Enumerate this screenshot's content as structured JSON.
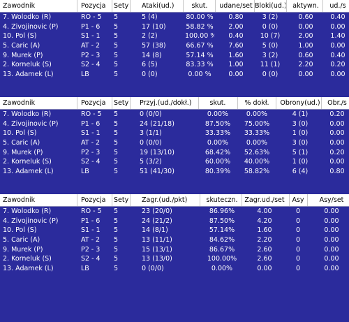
{
  "tables": [
    {
      "headers": [
        "Zawodnik",
        "Pozycja",
        "Sety",
        "Ataki(ud.)",
        "skut.",
        "udane/set",
        "Bloki(ud.)",
        "aktywn.",
        "ud./s"
      ],
      "rows": [
        [
          "7. Wolodko (R)",
          "RO - 5",
          "5",
          "5 (4)",
          "80.00 %",
          "0.80",
          "3 (2)",
          "0.60",
          "0.40"
        ],
        [
          "4. Zivojinovic (P)",
          "P1 - 6",
          "5",
          "17 (10)",
          "58.82 %",
          "2.00",
          "0 (0)",
          "0.00",
          "0.00"
        ],
        [
          "10. Pol (S)",
          "S1 - 1",
          "5",
          "2 (2)",
          "100.00 %",
          "0.40",
          "10 (7)",
          "2.00",
          "1.40"
        ],
        [
          "5. Caric (A)",
          "AT - 2",
          "5",
          "57 (38)",
          "66.67 %",
          "7.60",
          "5 (0)",
          "1.00",
          "0.00"
        ],
        [
          "9. Murek (P)",
          "P2 - 3",
          "5",
          "14 (8)",
          "57.14 %",
          "1.60",
          "3 (2)",
          "0.60",
          "0.40"
        ],
        [
          "2. Korneluk (S)",
          "S2 - 4",
          "5",
          "6 (5)",
          "83.33 %",
          "1.00",
          "11 (1)",
          "2.20",
          "0.20"
        ],
        [
          "13. Adamek (L)",
          "LB",
          "5",
          "0 (0)",
          "0.00 %",
          "0.00",
          "0 (0)",
          "0.00",
          "0.00"
        ]
      ]
    },
    {
      "headers": [
        "Zawodnik",
        "Pozycja",
        "Sety",
        "Przyj.(ud./dokł.)",
        "skut.",
        "% dokł.",
        "Obrony(ud.)",
        "Obr./s"
      ],
      "rows": [
        [
          "7. Wolodko (R)",
          "RO - 5",
          "5",
          "0 (0/0)",
          "0.00%",
          "0.00%",
          "4 (1)",
          "0.20"
        ],
        [
          "4. Zivojinovic (P)",
          "P1 - 6",
          "5",
          "24 (21/18)",
          "87.50%",
          "75.00%",
          "3 (0)",
          "0.00"
        ],
        [
          "10. Pol (S)",
          "S1 - 1",
          "5",
          "3 (1/1)",
          "33.33%",
          "33.33%",
          "1 (0)",
          "0.00"
        ],
        [
          "5. Caric (A)",
          "AT - 2",
          "5",
          "0 (0/0)",
          "0.00%",
          "0.00%",
          "3 (0)",
          "0.00"
        ],
        [
          "9. Murek (P)",
          "P2 - 3",
          "5",
          "19 (13/10)",
          "68.42%",
          "52.63%",
          "5 (1)",
          "0.20"
        ],
        [
          "2. Korneluk (S)",
          "S2 - 4",
          "5",
          "5 (3/2)",
          "60.00%",
          "40.00%",
          "1 (0)",
          "0.00"
        ],
        [
          "13. Adamek (L)",
          "LB",
          "5",
          "51 (41/30)",
          "80.39%",
          "58.82%",
          "6 (4)",
          "0.80"
        ]
      ]
    },
    {
      "headers": [
        "Zawodnik",
        "Pozycja",
        "Sety",
        "Zagr.(ud./pkt)",
        "skuteczn.",
        "Zagr.ud./set",
        "Asy",
        "Asy/set"
      ],
      "rows": [
        [
          "7. Wolodko (R)",
          "RO - 5",
          "5",
          "23 (20/0)",
          "86.96%",
          "4.00",
          "0",
          "0.00"
        ],
        [
          "4. Zivojinovic (P)",
          "P1 - 6",
          "5",
          "24 (21/2)",
          "87.50%",
          "4.20",
          "0",
          "0.00"
        ],
        [
          "10. Pol (S)",
          "S1 - 1",
          "5",
          "14 (8/1)",
          "57.14%",
          "1.60",
          "0",
          "0.00"
        ],
        [
          "5. Caric (A)",
          "AT - 2",
          "5",
          "13 (11/1)",
          "84.62%",
          "2.20",
          "0",
          "0.00"
        ],
        [
          "9. Murek (P)",
          "P2 - 3",
          "5",
          "15 (13/1)",
          "86.67%",
          "2.60",
          "0",
          "0.00"
        ],
        [
          "2. Korneluk (S)",
          "S2 - 4",
          "5",
          "13 (13/0)",
          "100.00%",
          "2.60",
          "0",
          "0.00"
        ],
        [
          "13. Adamek (L)",
          "LB",
          "5",
          "0 (0/0)",
          "0.00%",
          "0.00",
          "0",
          "0.00"
        ]
      ]
    }
  ],
  "colors": {
    "background": "#2b2b9c",
    "header_bg": "#ffffff",
    "text": "#ffffff",
    "header_text": "#000000"
  }
}
